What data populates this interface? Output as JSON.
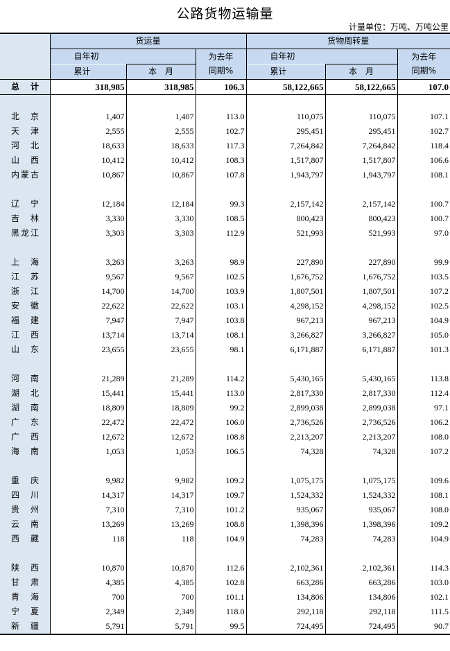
{
  "title": "公路货物运输量",
  "unit": "计量单位：万吨、万吨公里",
  "header": {
    "group1": "货运量",
    "group2": "货物周转量",
    "ytd_top": "自年初",
    "ytd_bottom": "累计",
    "month": "本　月",
    "yoy_top": "为去年",
    "yoy_bottom": "同期%"
  },
  "total": {
    "name": "总计",
    "values": [
      "318,985",
      "318,985",
      "106.3",
      "58,122,665",
      "58,122,665",
      "107.0"
    ]
  },
  "groups": [
    [
      {
        "name": "北京",
        "values": [
          "1,407",
          "1,407",
          "113.0",
          "110,075",
          "110,075",
          "107.1"
        ]
      },
      {
        "name": "天津",
        "values": [
          "2,555",
          "2,555",
          "102.7",
          "295,451",
          "295,451",
          "102.7"
        ]
      },
      {
        "name": "河北",
        "values": [
          "18,633",
          "18,633",
          "117.3",
          "7,264,842",
          "7,264,842",
          "118.4"
        ]
      },
      {
        "name": "山西",
        "values": [
          "10,412",
          "10,412",
          "108.3",
          "1,517,807",
          "1,517,807",
          "106.6"
        ]
      },
      {
        "name": "内蒙古",
        "values": [
          "10,867",
          "10,867",
          "107.8",
          "1,943,797",
          "1,943,797",
          "108.1"
        ]
      }
    ],
    [
      {
        "name": "辽宁",
        "values": [
          "12,184",
          "12,184",
          "99.3",
          "2,157,142",
          "2,157,142",
          "100.7"
        ]
      },
      {
        "name": "吉林",
        "values": [
          "3,330",
          "3,330",
          "108.5",
          "800,423",
          "800,423",
          "100.7"
        ]
      },
      {
        "name": "黑龙江",
        "values": [
          "3,303",
          "3,303",
          "112.9",
          "521,993",
          "521,993",
          "97.0"
        ]
      }
    ],
    [
      {
        "name": "上海",
        "values": [
          "3,263",
          "3,263",
          "98.9",
          "227,890",
          "227,890",
          "99.9"
        ]
      },
      {
        "name": "江苏",
        "values": [
          "9,567",
          "9,567",
          "102.5",
          "1,676,752",
          "1,676,752",
          "103.5"
        ]
      },
      {
        "name": "浙江",
        "values": [
          "14,700",
          "14,700",
          "103.9",
          "1,807,501",
          "1,807,501",
          "107.2"
        ]
      },
      {
        "name": "安徽",
        "values": [
          "22,622",
          "22,622",
          "103.1",
          "4,298,152",
          "4,298,152",
          "102.5"
        ]
      },
      {
        "name": "福建",
        "values": [
          "7,947",
          "7,947",
          "103.8",
          "967,213",
          "967,213",
          "104.9"
        ]
      },
      {
        "name": "江西",
        "values": [
          "13,714",
          "13,714",
          "108.1",
          "3,266,827",
          "3,266,827",
          "105.0"
        ]
      },
      {
        "name": "山东",
        "values": [
          "23,655",
          "23,655",
          "98.1",
          "6,171,887",
          "6,171,887",
          "101.3"
        ]
      }
    ],
    [
      {
        "name": "河南",
        "values": [
          "21,289",
          "21,289",
          "114.2",
          "5,430,165",
          "5,430,165",
          "113.8"
        ]
      },
      {
        "name": "湖北",
        "values": [
          "15,441",
          "15,441",
          "113.0",
          "2,817,330",
          "2,817,330",
          "112.4"
        ]
      },
      {
        "name": "湖南",
        "values": [
          "18,809",
          "18,809",
          "99.2",
          "2,899,038",
          "2,899,038",
          "97.1"
        ]
      },
      {
        "name": "广东",
        "values": [
          "22,472",
          "22,472",
          "106.0",
          "2,736,526",
          "2,736,526",
          "106.2"
        ]
      },
      {
        "name": "广西",
        "values": [
          "12,672",
          "12,672",
          "108.8",
          "2,213,207",
          "2,213,207",
          "108.0"
        ]
      },
      {
        "name": "海南",
        "values": [
          "1,053",
          "1,053",
          "106.5",
          "74,328",
          "74,328",
          "107.2"
        ]
      }
    ],
    [
      {
        "name": "重庆",
        "values": [
          "9,982",
          "9,982",
          "109.2",
          "1,075,175",
          "1,075,175",
          "109.6"
        ]
      },
      {
        "name": "四川",
        "values": [
          "14,317",
          "14,317",
          "109.7",
          "1,524,332",
          "1,524,332",
          "108.1"
        ]
      },
      {
        "name": "贵州",
        "values": [
          "7,310",
          "7,310",
          "101.2",
          "935,067",
          "935,067",
          "108.0"
        ]
      },
      {
        "name": "云南",
        "values": [
          "13,269",
          "13,269",
          "108.8",
          "1,398,396",
          "1,398,396",
          "109.2"
        ]
      },
      {
        "name": "西藏",
        "values": [
          "118",
          "118",
          "104.9",
          "74,283",
          "74,283",
          "104.9"
        ]
      }
    ],
    [
      {
        "name": "陕西",
        "values": [
          "10,870",
          "10,870",
          "112.6",
          "2,102,361",
          "2,102,361",
          "114.3"
        ]
      },
      {
        "name": "甘肃",
        "values": [
          "4,385",
          "4,385",
          "102.8",
          "663,286",
          "663,286",
          "103.0"
        ]
      },
      {
        "name": "青海",
        "values": [
          "700",
          "700",
          "101.1",
          "134,806",
          "134,806",
          "102.1"
        ]
      },
      {
        "name": "宁夏",
        "values": [
          "2,349",
          "2,349",
          "118.0",
          "292,118",
          "292,118",
          "111.5"
        ]
      },
      {
        "name": "新疆",
        "values": [
          "5,791",
          "5,791",
          "99.5",
          "724,495",
          "724,495",
          "90.7"
        ]
      }
    ]
  ]
}
